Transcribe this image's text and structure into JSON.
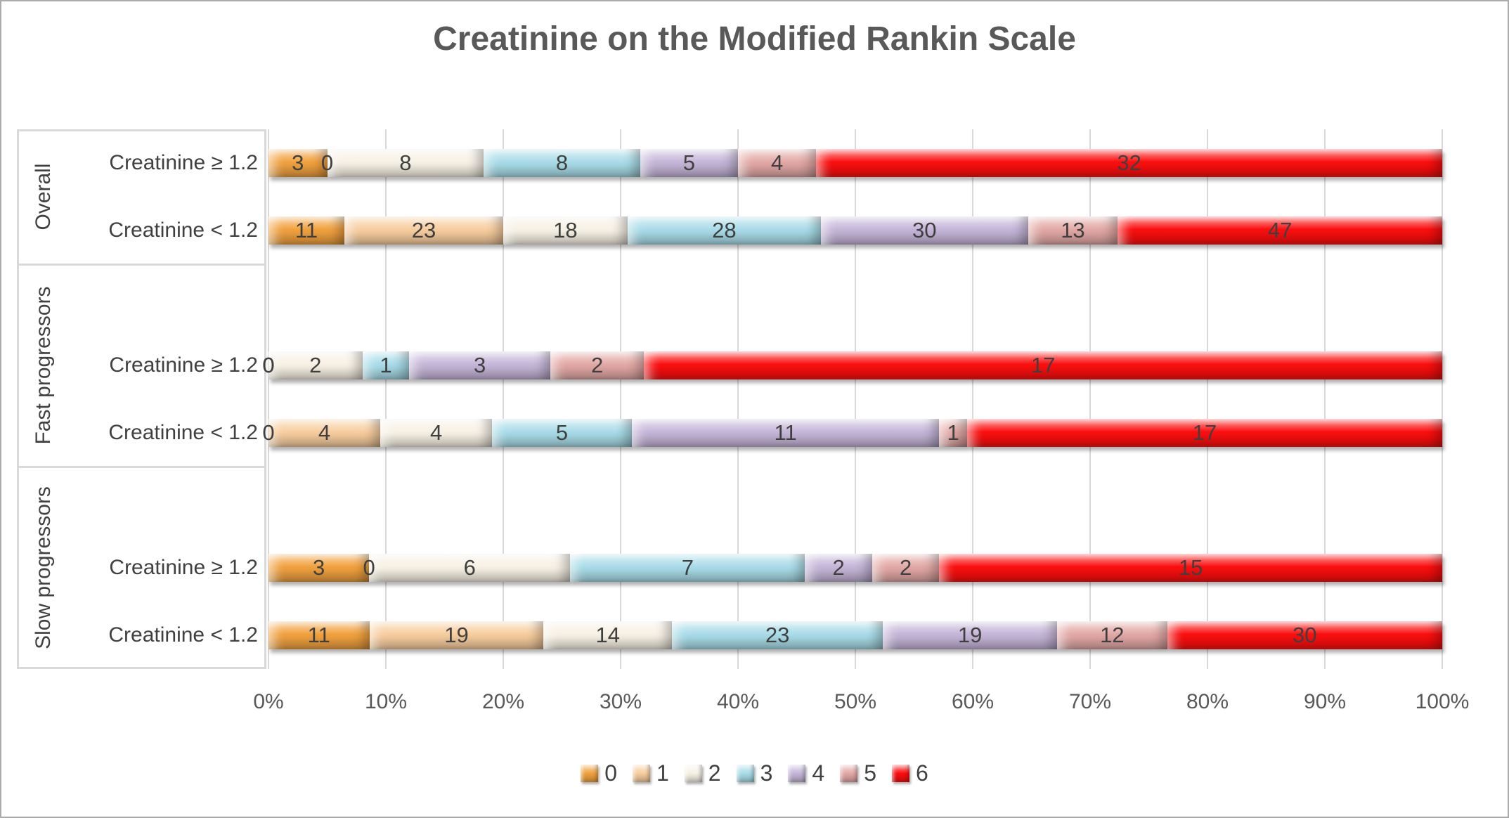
{
  "title": "Creatinine on the Modified Rankin Scale",
  "chart_data": {
    "type": "bar",
    "subtype": "100-percent-stacked-horizontal",
    "title": "Creatinine on the Modified Rankin Scale",
    "series": [
      {
        "name": "0",
        "color": "#F1A13E"
      },
      {
        "name": "1",
        "color": "#F7CD9E"
      },
      {
        "name": "2",
        "color": "#F7F1E5"
      },
      {
        "name": "3",
        "color": "#A8DCE8"
      },
      {
        "name": "4",
        "color": "#C5B5D8"
      },
      {
        "name": "5",
        "color": "#E2A8A5"
      },
      {
        "name": "6",
        "color": "#FB0E0E"
      }
    ],
    "groups": [
      {
        "label": "Overall",
        "rows": [
          {
            "label": "Creatinine ≥ 1.2",
            "values": [
              3,
              0,
              8,
              8,
              5,
              4,
              32
            ]
          },
          {
            "label": "Creatinine < 1.2",
            "values": [
              11,
              23,
              18,
              28,
              30,
              13,
              47
            ]
          }
        ]
      },
      {
        "label": "Fast progressors",
        "rows": [
          {
            "label": "Creatinine ≥ 1.2",
            "values": [
              0,
              0,
              2,
              1,
              3,
              2,
              17
            ]
          },
          {
            "label": "Creatinine < 1.2",
            "values": [
              0,
              4,
              4,
              5,
              11,
              1,
              17
            ]
          }
        ]
      },
      {
        "label": "Slow progressors",
        "rows": [
          {
            "label": "Creatinine ≥ 1.2",
            "values": [
              3,
              0,
              6,
              7,
              2,
              2,
              15
            ]
          },
          {
            "label": "Creatinine < 1.2",
            "values": [
              11,
              19,
              14,
              23,
              19,
              12,
              30
            ]
          }
        ]
      }
    ],
    "x_axis": {
      "ticks": [
        "0%",
        "10%",
        "20%",
        "30%",
        "40%",
        "50%",
        "60%",
        "70%",
        "80%",
        "90%",
        "100%"
      ],
      "range": [
        0,
        100
      ],
      "grid": true
    },
    "legend": {
      "position": "bottom",
      "entries": [
        "0",
        "1",
        "2",
        "3",
        "4",
        "5",
        "6"
      ]
    },
    "colors": {
      "gridline": "#D9D9D9",
      "axis_text": "#595959",
      "category_text": "#404040",
      "data_label_text": "#3F3F3F",
      "title_text": "#595959",
      "frame_border": "#ABABAB",
      "category_box_border": "#D9D9D9",
      "background": "#FFFFFF"
    }
  }
}
